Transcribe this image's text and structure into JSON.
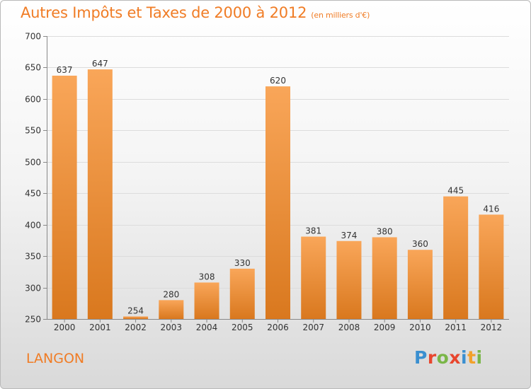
{
  "header": {
    "title": "Autres Impôts et Taxes de 2000 à 2012",
    "subtitle": "(en milliers d'€)"
  },
  "footer": {
    "city": "LANGON",
    "logo": "Proxiti"
  },
  "colors": {
    "accent": "#f07c25",
    "bar_top": "#f9a659",
    "bar_bottom": "#d9781e",
    "logo_letters": [
      "#3a8fd0",
      "#e8462e",
      "#7ab648",
      "#e8462e",
      "#3a8fd0",
      "#f2a12a",
      "#7ab648"
    ]
  },
  "chart_data": {
    "type": "bar",
    "title": "Autres Impôts et Taxes de 2000 à 2012",
    "subtitle": "(en milliers d'€)",
    "categories": [
      "2000",
      "2001",
      "2002",
      "2003",
      "2004",
      "2005",
      "2006",
      "2007",
      "2008",
      "2009",
      "2010",
      "2011",
      "2012"
    ],
    "values": [
      637,
      647,
      254,
      280,
      308,
      330,
      620,
      381,
      374,
      380,
      360,
      445,
      416
    ],
    "ylim": [
      250,
      700
    ],
    "yticks": [
      250,
      300,
      350,
      400,
      450,
      500,
      550,
      600,
      650,
      700
    ],
    "grid": true,
    "legend": "none",
    "data_labels": true
  }
}
